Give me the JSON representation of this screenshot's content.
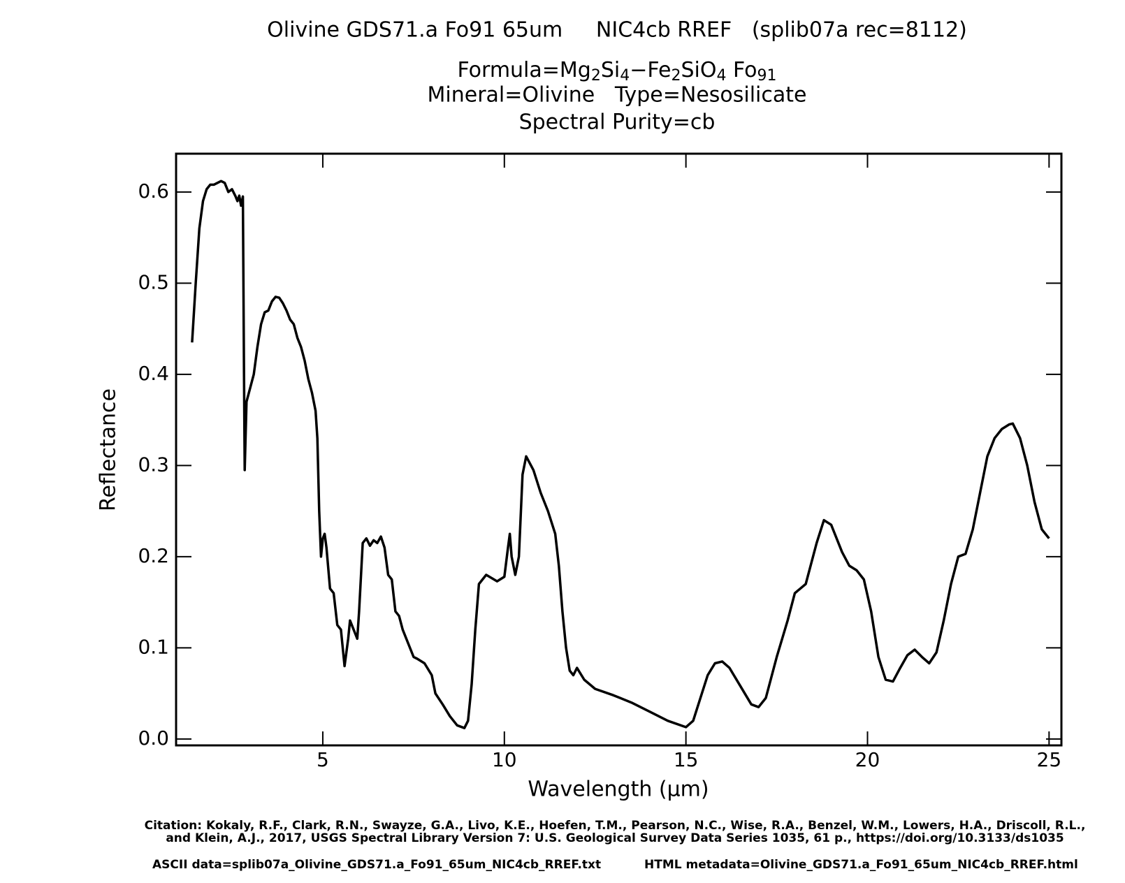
{
  "chart_data": {
    "type": "line",
    "title": "Olivine GDS71.a Fo91 65um     NIC4cb RREF   (splib07a rec=8112)",
    "formula_parts": [
      "Formula=Mg",
      "2",
      "Si",
      "4",
      "−Fe",
      "2",
      "SiO",
      "4",
      " Fo",
      "91"
    ],
    "subtitle_lines": [
      "Mineral=Olivine   Type=Nesosilicate",
      "Spectral Purity=cb"
    ],
    "xlabel": "Wavelength (μm)",
    "ylabel": "Reflectance",
    "citation_lines": [
      "Citation: Kokaly, R.F., Clark, R.N., Swayze, G.A., Livo, K.E., Hoefen, T.M., Pearson, N.C., Wise, R.A., Benzel, W.M., Lowers, H.A., Driscoll, R.L.,",
      "and Klein, A.J., 2017, USGS Spectral Library Version 7: U.S. Geological Survey Data Series 1035, 61 p., https://doi.org/10.3133/ds1035"
    ],
    "ascii_data": "ASCII data=splib07a_Olivine_GDS71.a_Fo91_65um_NIC4cb_RREF.txt",
    "html_metadata": "HTML metadata=Olivine_GDS71.a_Fo91_65um_NIC4cb_RREF.html",
    "xlim": [
      0.96,
      25.34
    ],
    "ylim": [
      -0.007,
      0.642
    ],
    "xticks": [
      5,
      10,
      15,
      20,
      25
    ],
    "yticks": [
      {
        "value": 0,
        "label": "0.0"
      },
      {
        "value": 0.1,
        "label": "0.1"
      },
      {
        "value": 0.2,
        "label": "0.2"
      },
      {
        "value": 0.3,
        "label": "0.3"
      },
      {
        "value": 0.4,
        "label": "0.4"
      },
      {
        "value": 0.5,
        "label": "0.5"
      },
      {
        "value": 0.6,
        "label": "0.6"
      }
    ],
    "color": "#000000",
    "x": [
      1.4,
      1.5,
      1.6,
      1.7,
      1.8,
      1.9,
      2.0,
      2.1,
      2.2,
      2.3,
      2.4,
      2.5,
      2.6,
      2.65,
      2.7,
      2.75,
      2.8,
      2.83,
      2.85,
      2.9,
      3.0,
      3.1,
      3.2,
      3.3,
      3.4,
      3.5,
      3.6,
      3.7,
      3.8,
      3.9,
      4.0,
      4.1,
      4.2,
      4.3,
      4.4,
      4.5,
      4.6,
      4.7,
      4.8,
      4.85,
      4.9,
      4.95,
      5.0,
      5.05,
      5.1,
      5.2,
      5.3,
      5.4,
      5.5,
      5.6,
      5.7,
      5.75,
      5.85,
      5.95,
      6.0,
      6.1,
      6.2,
      6.3,
      6.4,
      6.5,
      6.6,
      6.7,
      6.8,
      6.9,
      7.0,
      7.1,
      7.2,
      7.4,
      7.5,
      7.6,
      7.8,
      8.0,
      8.1,
      8.3,
      8.5,
      8.7,
      8.9,
      9.0,
      9.1,
      9.2,
      9.3,
      9.5,
      9.8,
      10.0,
      10.1,
      10.15,
      10.2,
      10.3,
      10.4,
      10.5,
      10.6,
      10.8,
      11.0,
      11.2,
      11.4,
      11.5,
      11.6,
      11.7,
      11.8,
      11.9,
      12.0,
      12.2,
      12.5,
      13.0,
      13.5,
      14.0,
      14.5,
      15.0,
      15.2,
      15.4,
      15.6,
      15.8,
      16.0,
      16.2,
      16.5,
      16.8,
      17.0,
      17.2,
      17.5,
      17.8,
      18.0,
      18.3,
      18.6,
      18.8,
      19.0,
      19.3,
      19.5,
      19.7,
      19.9,
      20.1,
      20.3,
      20.5,
      20.7,
      20.9,
      21.1,
      21.3,
      21.5,
      21.7,
      21.9,
      22.1,
      22.3,
      22.5,
      22.7,
      22.9,
      23.1,
      23.3,
      23.5,
      23.7,
      23.9,
      24.0,
      24.2,
      24.4,
      24.6,
      24.8,
      25.0
    ],
    "values": [
      0.435,
      0.5,
      0.56,
      0.59,
      0.603,
      0.608,
      0.608,
      0.61,
      0.612,
      0.61,
      0.6,
      0.603,
      0.595,
      0.59,
      0.596,
      0.585,
      0.595,
      0.4,
      0.295,
      0.37,
      0.385,
      0.4,
      0.43,
      0.455,
      0.468,
      0.47,
      0.48,
      0.485,
      0.484,
      0.478,
      0.47,
      0.46,
      0.455,
      0.44,
      0.43,
      0.415,
      0.395,
      0.38,
      0.36,
      0.33,
      0.25,
      0.2,
      0.22,
      0.225,
      0.21,
      0.165,
      0.16,
      0.125,
      0.12,
      0.08,
      0.11,
      0.13,
      0.12,
      0.11,
      0.14,
      0.215,
      0.22,
      0.212,
      0.218,
      0.215,
      0.222,
      0.21,
      0.18,
      0.175,
      0.14,
      0.135,
      0.12,
      0.1,
      0.09,
      0.088,
      0.083,
      0.07,
      0.05,
      0.038,
      0.025,
      0.015,
      0.012,
      0.02,
      0.06,
      0.12,
      0.17,
      0.18,
      0.173,
      0.178,
      0.21,
      0.225,
      0.2,
      0.18,
      0.2,
      0.29,
      0.31,
      0.295,
      0.27,
      0.25,
      0.225,
      0.19,
      0.14,
      0.1,
      0.075,
      0.07,
      0.078,
      0.065,
      0.055,
      0.048,
      0.04,
      0.03,
      0.02,
      0.013,
      0.02,
      0.045,
      0.07,
      0.083,
      0.085,
      0.078,
      0.058,
      0.038,
      0.035,
      0.045,
      0.09,
      0.13,
      0.16,
      0.17,
      0.215,
      0.24,
      0.235,
      0.205,
      0.19,
      0.185,
      0.175,
      0.14,
      0.09,
      0.065,
      0.063,
      0.078,
      0.092,
      0.098,
      0.09,
      0.083,
      0.095,
      0.13,
      0.17,
      0.2,
      0.203,
      0.23,
      0.27,
      0.31,
      0.33,
      0.34,
      0.345,
      0.346,
      0.33,
      0.3,
      0.26,
      0.23,
      0.22
    ]
  }
}
